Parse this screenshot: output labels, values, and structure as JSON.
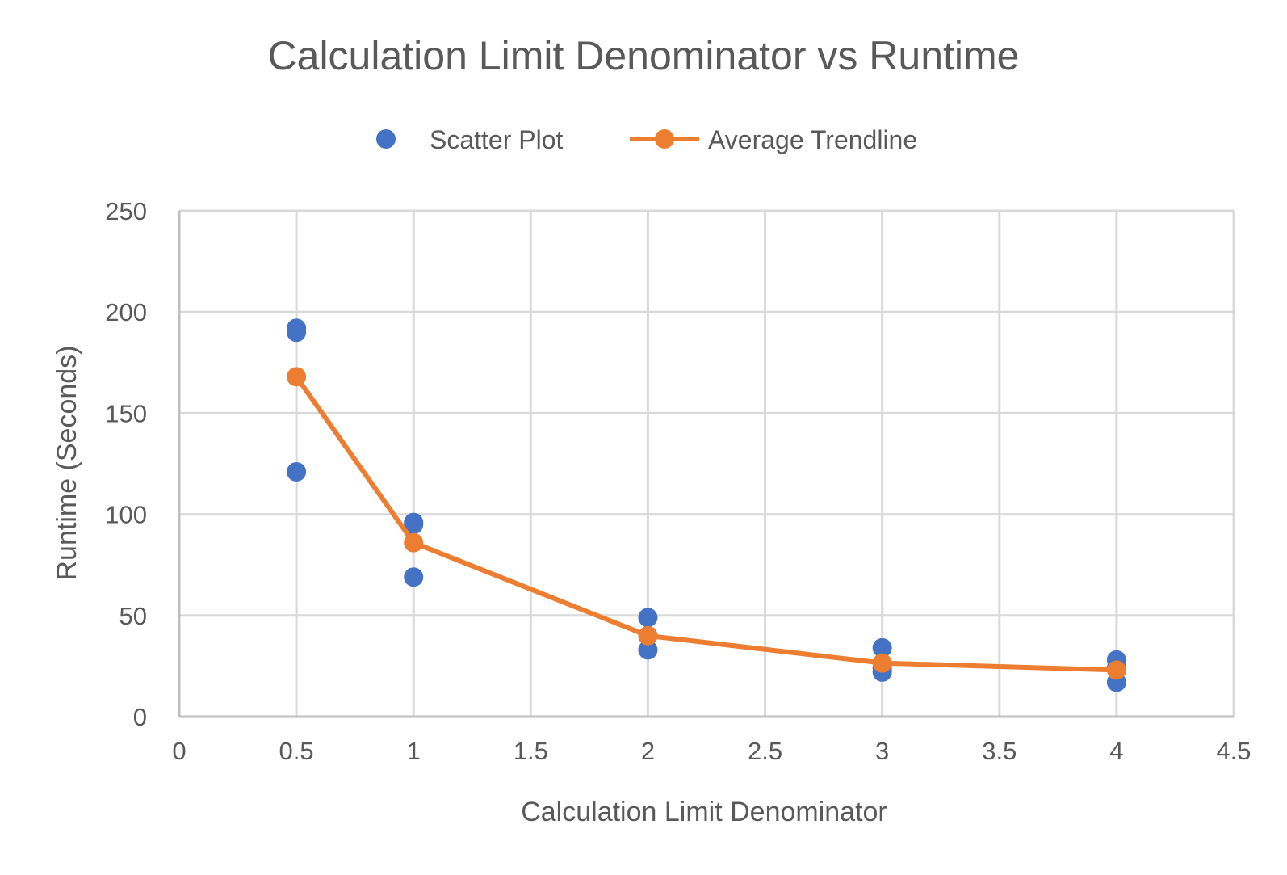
{
  "colors": {
    "scatter": "#4472C4",
    "trend": "#ED7D31",
    "grid": "#D9D9D9",
    "axis": "#BFBFBF",
    "text": "#595959"
  },
  "chart_data": {
    "type": "scatter",
    "title": "Calculation Limit Denominator vs Runtime",
    "xlabel": "Calculation Limit Denominator",
    "ylabel": "Runtime (Seconds)",
    "xlim": [
      0,
      4.5
    ],
    "ylim": [
      0,
      250
    ],
    "x_ticks": [
      "0",
      "0.5",
      "1",
      "1.5",
      "2",
      "2.5",
      "3",
      "3.5",
      "4",
      "4.5"
    ],
    "y_ticks": [
      "0",
      "50",
      "100",
      "150",
      "200",
      "250"
    ],
    "grid": true,
    "legend_position": "top",
    "series": [
      {
        "name": "Scatter Plot",
        "kind": "markers",
        "points": [
          [
            0.5,
            192
          ],
          [
            0.5,
            190
          ],
          [
            0.5,
            121
          ],
          [
            1,
            96
          ],
          [
            1,
            95
          ],
          [
            1,
            69
          ],
          [
            2,
            49
          ],
          [
            2,
            40
          ],
          [
            2,
            33
          ],
          [
            3,
            34
          ],
          [
            3,
            24
          ],
          [
            3,
            22
          ],
          [
            4,
            28
          ],
          [
            4,
            24
          ],
          [
            4,
            17
          ]
        ]
      },
      {
        "name": "Average Trendline",
        "kind": "line-markers",
        "points": [
          [
            0.5,
            168
          ],
          [
            1,
            86
          ],
          [
            2,
            40
          ],
          [
            3,
            26.5
          ],
          [
            4,
            23
          ]
        ]
      }
    ]
  }
}
